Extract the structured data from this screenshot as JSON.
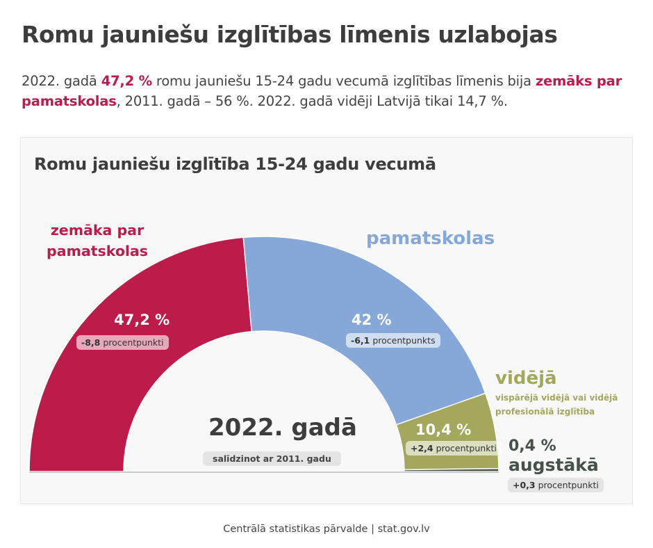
{
  "title": "Romu jauniešu izglītības līmenis uzlabojas",
  "subtitle": {
    "p1": "2022. gadā ",
    "h1": "47,2 %",
    "p2": " romu jauniešu 15-24 gadu vecumā izglītības līmenis bija ",
    "h2": "zemāks par pamatskolas",
    "p3": ", 2011. gadā – 56 %. 2022. gadā vidēji Latvijā tikai 14,7 %."
  },
  "chart_data": {
    "type": "pie",
    "variant": "semicircle-donut",
    "title": "Romu jauniešu izglītība 15-24 gadu vecumā",
    "center_label": "2022. gadā",
    "center_sublabel": "salīdzinot ar 2011. gadu",
    "unit": "%",
    "slices": [
      {
        "name": "zemāka par pamatskolas",
        "value": 47.2,
        "value_label": "47,2 %",
        "change_value": -8.8,
        "change_num": "-8,8",
        "change_unit": " procentpunkti",
        "color": "#bd1c4b"
      },
      {
        "name": "pamatskolas",
        "value": 42.0,
        "value_label": "42 %",
        "change_value": -6.1,
        "change_num": "-6,1",
        "change_unit": " procentpunkts",
        "color": "#85a8d9"
      },
      {
        "name": "vidējā",
        "description": "vispārējā vidējā vai vidējā profesionālā izglītība",
        "value": 10.4,
        "value_label": "10,4 %",
        "change_value": 2.4,
        "change_num": "+2,4",
        "change_unit": " procentpunkti",
        "color": "#a3a85c"
      },
      {
        "name": "augstākā",
        "value": 0.4,
        "value_label": "0,4 %",
        "change_value": 0.3,
        "change_num": "+0,3",
        "change_unit": " procentpunkti",
        "color": "#465249"
      }
    ]
  },
  "labels": {
    "red_line1": "zemāka par",
    "red_line2": "pamatskolas"
  },
  "footer": "Centrālā statistikas pārvalde | stat.gov.lv"
}
